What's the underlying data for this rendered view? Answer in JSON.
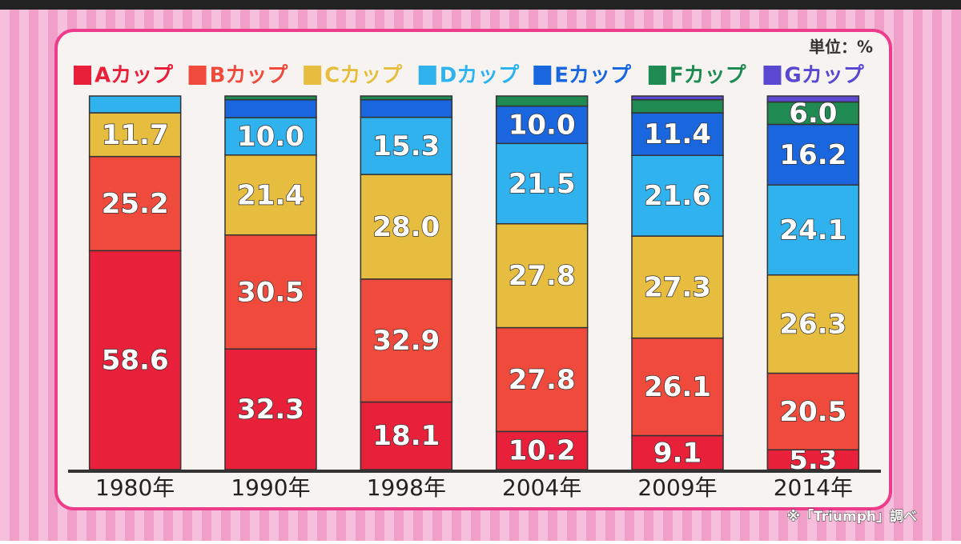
{
  "chart_data": {
    "type": "stacked_bar",
    "unit_note": "単位：%",
    "source": "※「Triumph」調べ",
    "categories": [
      "1980年",
      "1990年",
      "1998年",
      "2004年",
      "2009年",
      "2014年"
    ],
    "ylim": [
      0,
      100
    ],
    "series": [
      {
        "name": "Aカップ",
        "color": "#e8203a",
        "values": [
          58.6,
          32.3,
          18.1,
          10.2,
          9.1,
          5.3
        ],
        "value_labels": [
          "58.6",
          "32.3",
          "18.1",
          "10.2",
          "9.1",
          "5.3"
        ]
      },
      {
        "name": "Bカップ",
        "color": "#f04a3c",
        "values": [
          25.2,
          30.5,
          32.9,
          27.8,
          26.1,
          20.5
        ],
        "value_labels": [
          "25.2",
          "30.5",
          "32.9",
          "27.8",
          "26.1",
          "20.5"
        ]
      },
      {
        "name": "Cカップ",
        "color": "#e6bd3e",
        "values": [
          11.7,
          21.4,
          28.0,
          27.8,
          27.3,
          26.3
        ],
        "value_labels": [
          "11.7",
          "21.4",
          "28.0",
          "27.8",
          "27.3",
          "26.3"
        ]
      },
      {
        "name": "Dカップ",
        "color": "#2fb2ee",
        "values": [
          4.5,
          10.0,
          15.3,
          21.5,
          21.6,
          24.1
        ],
        "value_labels": [
          null,
          "10.0",
          "15.3",
          "21.5",
          "21.6",
          "24.1"
        ]
      },
      {
        "name": "Eカップ",
        "color": "#1a66de",
        "values": [
          0,
          4.8,
          4.7,
          10.0,
          11.4,
          16.2
        ],
        "value_labels": [
          null,
          null,
          null,
          "10.0",
          "11.4",
          "16.2"
        ]
      },
      {
        "name": "Fカップ",
        "color": "#1f8a52",
        "values": [
          0,
          1.0,
          1.0,
          2.7,
          3.5,
          6.0
        ],
        "value_labels": [
          null,
          null,
          null,
          null,
          null,
          "6.0"
        ]
      },
      {
        "name": "Gカップ",
        "color": "#5a48d0",
        "values": [
          0,
          0,
          0,
          0,
          1.0,
          1.6
        ],
        "value_labels": [
          null,
          null,
          null,
          null,
          null,
          null
        ]
      }
    ]
  }
}
